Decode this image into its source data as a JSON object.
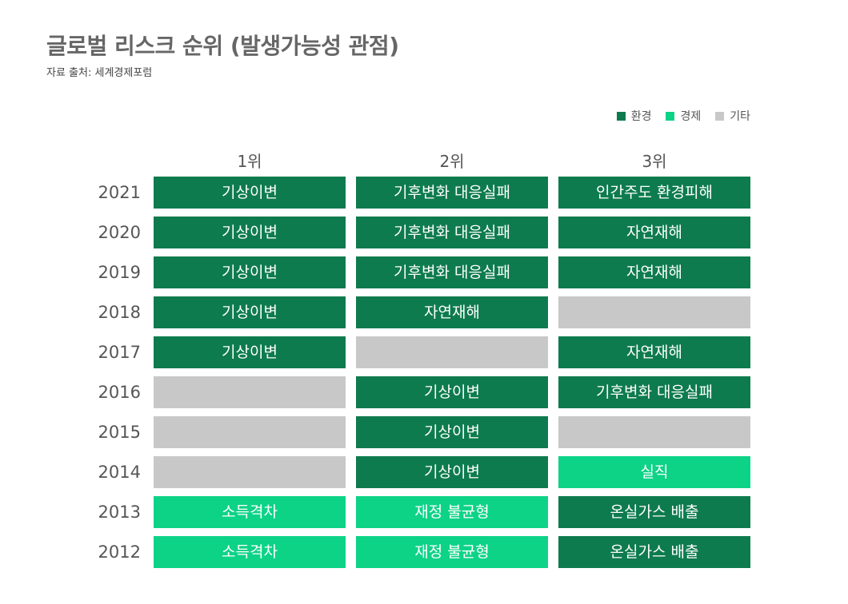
{
  "title": "글로벌 리스크 순위 (발생가능성 관점)",
  "subtitle": "자료 출처: 세계경제포럼",
  "colors": {
    "환경": "#0e7b4e",
    "경제": "#0dd387",
    "기타": "#c8c8c8"
  },
  "legend": [
    {
      "label": "환경",
      "color": "#0e7b4e"
    },
    {
      "label": "경제",
      "color": "#0dd387"
    },
    {
      "label": "기타",
      "color": "#c8c8c8"
    }
  ],
  "chart_data": {
    "type": "table",
    "columns": [
      "1위",
      "2위",
      "3위"
    ],
    "rows": [
      {
        "year": "2021",
        "cells": [
          {
            "label": "기상이변",
            "category": "환경"
          },
          {
            "label": "기후변화 대응실패",
            "category": "환경"
          },
          {
            "label": "인간주도 환경피해",
            "category": "환경"
          }
        ]
      },
      {
        "year": "2020",
        "cells": [
          {
            "label": "기상이변",
            "category": "환경"
          },
          {
            "label": "기후변화 대응실패",
            "category": "환경"
          },
          {
            "label": "자연재해",
            "category": "환경"
          }
        ]
      },
      {
        "year": "2019",
        "cells": [
          {
            "label": "기상이변",
            "category": "환경"
          },
          {
            "label": "기후변화 대응실패",
            "category": "환경"
          },
          {
            "label": "자연재해",
            "category": "환경"
          }
        ]
      },
      {
        "year": "2018",
        "cells": [
          {
            "label": "기상이변",
            "category": "환경"
          },
          {
            "label": "자연재해",
            "category": "환경"
          },
          {
            "label": "",
            "category": "기타"
          }
        ]
      },
      {
        "year": "2017",
        "cells": [
          {
            "label": "기상이변",
            "category": "환경"
          },
          {
            "label": "",
            "category": "기타"
          },
          {
            "label": "자연재해",
            "category": "환경"
          }
        ]
      },
      {
        "year": "2016",
        "cells": [
          {
            "label": "",
            "category": "기타"
          },
          {
            "label": "기상이변",
            "category": "환경"
          },
          {
            "label": "기후변화 대응실패",
            "category": "환경"
          }
        ]
      },
      {
        "year": "2015",
        "cells": [
          {
            "label": "",
            "category": "기타"
          },
          {
            "label": "기상이변",
            "category": "환경"
          },
          {
            "label": "",
            "category": "기타"
          }
        ]
      },
      {
        "year": "2014",
        "cells": [
          {
            "label": "",
            "category": "기타"
          },
          {
            "label": "기상이변",
            "category": "환경"
          },
          {
            "label": "실직",
            "category": "경제"
          }
        ]
      },
      {
        "year": "2013",
        "cells": [
          {
            "label": "소득격차",
            "category": "경제"
          },
          {
            "label": "재정 불균형",
            "category": "경제"
          },
          {
            "label": "온실가스 배출",
            "category": "환경"
          }
        ]
      },
      {
        "year": "2012",
        "cells": [
          {
            "label": "소득격차",
            "category": "경제"
          },
          {
            "label": "재정 불균형",
            "category": "경제"
          },
          {
            "label": "온실가스 배출",
            "category": "환경"
          }
        ]
      }
    ]
  }
}
